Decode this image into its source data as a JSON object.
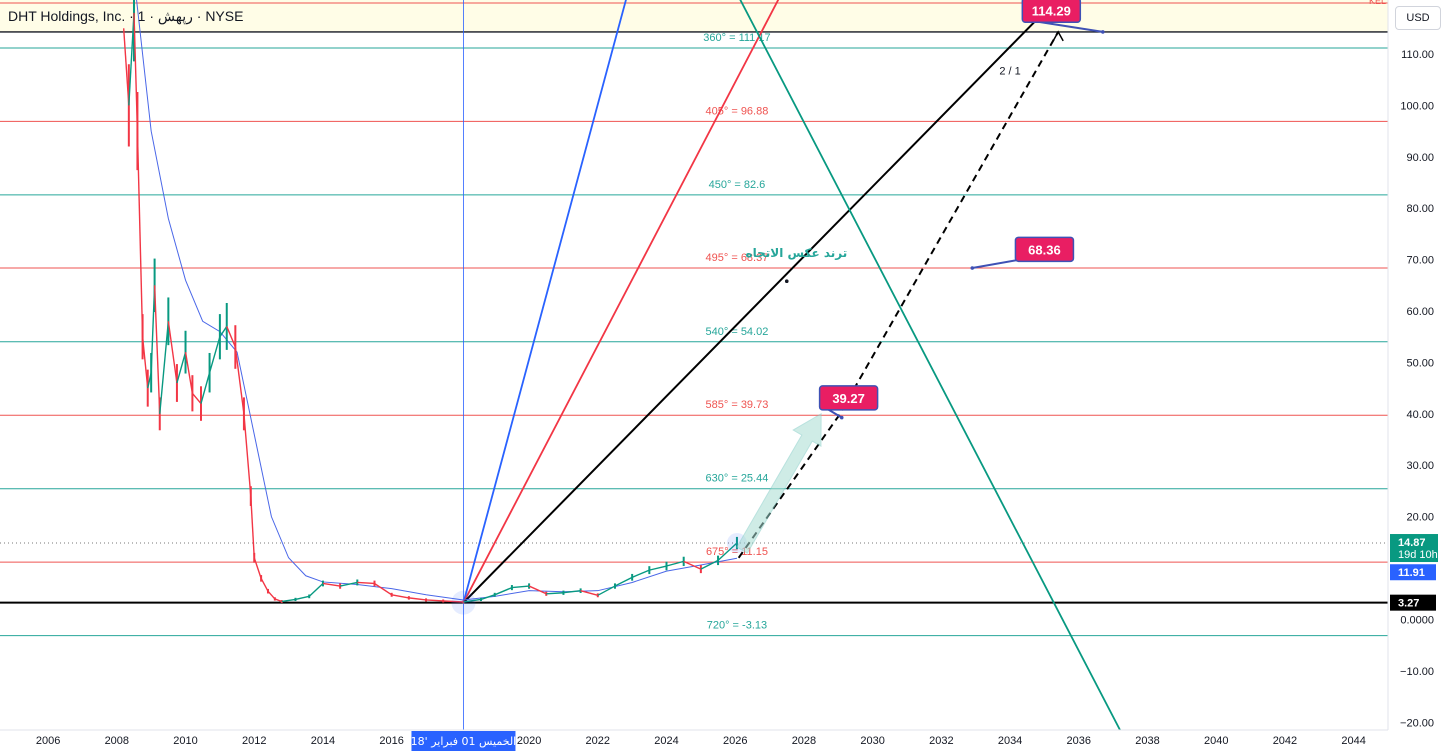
{
  "header": {
    "title": "DHT Holdings, Inc. · 1 · رپهش · NYSE",
    "currency": "USD",
    "corner_mark": "KEL"
  },
  "colors": {
    "teal_level": "#26a69a",
    "red_level": "#ef5350",
    "blue_ray": "#2962ff",
    "red_ray": "#f23645",
    "black_ray": "#000000",
    "green_ray": "#089981",
    "callout": "#e91e63",
    "callout_border": "#3f51b5",
    "highlight_band": "#fffde7",
    "sma": "#4a67e8",
    "candle_up": "#089981",
    "candle_down": "#f23645"
  },
  "chart_data": {
    "type": "line",
    "title": "DHT Holdings, Inc. · 1 · رپهش · NYSE",
    "xlabel": "",
    "ylabel": "",
    "xlim": [
      2004.6,
      2045.0
    ],
    "ylim": [
      -21.5,
      120.5
    ],
    "x_ticks": [
      "2006",
      "2008",
      "2010",
      "2012",
      "2014",
      "2016",
      "2018",
      "2020",
      "2022",
      "2024",
      "2026",
      "2028",
      "2030",
      "2032",
      "2034",
      "2036",
      "2038",
      "2040",
      "2042",
      "2044"
    ],
    "y_ticks": [
      "110.00",
      "100.00",
      "90.00",
      "80.00",
      "70.00",
      "60.00",
      "50.00",
      "40.00",
      "30.00",
      "20.00",
      "10.00",
      "0.0000",
      "−10.00",
      "−20.00"
    ],
    "grid": false,
    "gann_levels": [
      {
        "label": "360° = 111.17",
        "value": 111.17,
        "color": "teal"
      },
      {
        "label": "405° = 96.88",
        "value": 96.88,
        "color": "red"
      },
      {
        "label": "450° = 82.6",
        "value": 82.6,
        "color": "teal"
      },
      {
        "label": "495° = 68.37",
        "value": 68.37,
        "color": "red"
      },
      {
        "label": "540° = 54.02",
        "value": 54.02,
        "color": "teal"
      },
      {
        "label": "585° = 39.73",
        "value": 39.73,
        "color": "red"
      },
      {
        "label": "630° = 25.44",
        "value": 25.44,
        "color": "teal"
      },
      {
        "label": "675° = 11.15",
        "value": 11.15,
        "color": "red"
      },
      {
        "label": "720° = -3.13",
        "value": -3.13,
        "color": "teal"
      }
    ],
    "horizontal_lines": [
      {
        "value": 114.29,
        "color": "#131722"
      },
      {
        "value": 3.27,
        "color": "#000000"
      }
    ],
    "last_price": {
      "label": "14.87",
      "countdown": "19d 10h",
      "value": 14.87
    },
    "sma_value": {
      "label": "11.91",
      "value": 11.91
    },
    "support_value": {
      "label": "3.27",
      "value": 3.27
    },
    "date_marker": {
      "label": "الخميس 01 فبراير '18",
      "x": 2018.09
    },
    "fan_origin": {
      "x": 2018.09,
      "y": 3.27
    },
    "rays": [
      {
        "name": "blue",
        "x2": 2023.0,
        "y2": 125
      },
      {
        "name": "red",
        "x2": 2027.6,
        "y2": 125
      },
      {
        "name": "black",
        "x2": 2036.0,
        "y2": 125
      },
      {
        "name": "green",
        "x1": 2025.8,
        "y1": 125,
        "x2": 2037.2,
        "y2": -21.5
      }
    ],
    "projection": {
      "points": [
        [
          2026.1,
          12.0
        ],
        [
          2029.0,
          39.5
        ],
        [
          2035.4,
          114.29
        ]
      ],
      "label": "2 / 1"
    },
    "annotations": [
      {
        "text": "114.29",
        "x": 2035.2,
        "y": 118.5,
        "anchor_x": 2036.7,
        "anchor_y": 114.29
      },
      {
        "text": "68.36",
        "x": 2035.0,
        "y": 72.0,
        "anchor_x": 2032.9,
        "anchor_y": 68.36
      },
      {
        "text": "39.27",
        "x": 2029.3,
        "y": 43.1,
        "anchor_x": 2029.1,
        "anchor_y": 39.27
      }
    ],
    "reversal_note": {
      "text": "ترند عكس الاتجاه",
      "x": 2026.3,
      "y": 70.5
    },
    "price_series": [
      [
        2008.2,
        115
      ],
      [
        2008.35,
        100
      ],
      [
        2008.5,
        118
      ],
      [
        2008.6,
        95
      ],
      [
        2008.75,
        55
      ],
      [
        2008.9,
        45
      ],
      [
        2009.0,
        48
      ],
      [
        2009.1,
        65
      ],
      [
        2009.25,
        40
      ],
      [
        2009.5,
        58
      ],
      [
        2009.75,
        46
      ],
      [
        2010.0,
        52
      ],
      [
        2010.2,
        44
      ],
      [
        2010.45,
        42
      ],
      [
        2010.7,
        48
      ],
      [
        2011.0,
        55
      ],
      [
        2011.2,
        57
      ],
      [
        2011.45,
        53
      ],
      [
        2011.7,
        40
      ],
      [
        2011.9,
        24
      ],
      [
        2012.0,
        12
      ],
      [
        2012.2,
        8
      ],
      [
        2012.4,
        5.5
      ],
      [
        2012.6,
        4.0
      ],
      [
        2012.8,
        3.5
      ],
      [
        2013.2,
        3.9
      ],
      [
        2013.6,
        4.5
      ],
      [
        2014.0,
        7
      ],
      [
        2014.5,
        6.5
      ],
      [
        2015.0,
        7.2
      ],
      [
        2015.5,
        7.0
      ],
      [
        2016.0,
        4.8
      ],
      [
        2016.5,
        4.2
      ],
      [
        2017.0,
        3.8
      ],
      [
        2017.5,
        3.6
      ],
      [
        2018.09,
        3.4
      ],
      [
        2018.6,
        3.9
      ],
      [
        2019.0,
        4.8
      ],
      [
        2019.5,
        6.2
      ],
      [
        2020.0,
        6.5
      ],
      [
        2020.5,
        5.0
      ],
      [
        2021.0,
        5.2
      ],
      [
        2021.5,
        5.6
      ],
      [
        2022.0,
        4.7
      ],
      [
        2022.5,
        6.5
      ],
      [
        2023.0,
        8.2
      ],
      [
        2023.5,
        9.6
      ],
      [
        2024.0,
        10.4
      ],
      [
        2024.5,
        11.3
      ],
      [
        2025.0,
        9.8
      ],
      [
        2025.5,
        11.5
      ],
      [
        2026.05,
        14.87
      ]
    ],
    "sma_series": [
      [
        2008.5,
        125
      ],
      [
        2009.0,
        95
      ],
      [
        2009.5,
        78
      ],
      [
        2010.0,
        66
      ],
      [
        2010.5,
        58
      ],
      [
        2011.0,
        56
      ],
      [
        2011.5,
        52
      ],
      [
        2012.0,
        36
      ],
      [
        2012.5,
        20
      ],
      [
        2013.0,
        12
      ],
      [
        2013.5,
        8.5
      ],
      [
        2014.0,
        7.3
      ],
      [
        2015.0,
        6.8
      ],
      [
        2016.0,
        6.0
      ],
      [
        2017.0,
        4.8
      ],
      [
        2018.09,
        3.8
      ],
      [
        2019.0,
        4.5
      ],
      [
        2020.0,
        5.6
      ],
      [
        2021.0,
        5.4
      ],
      [
        2022.0,
        5.6
      ],
      [
        2023.0,
        7.2
      ],
      [
        2024.0,
        9.4
      ],
      [
        2025.0,
        10.6
      ],
      [
        2026.05,
        11.91
      ]
    ]
  }
}
